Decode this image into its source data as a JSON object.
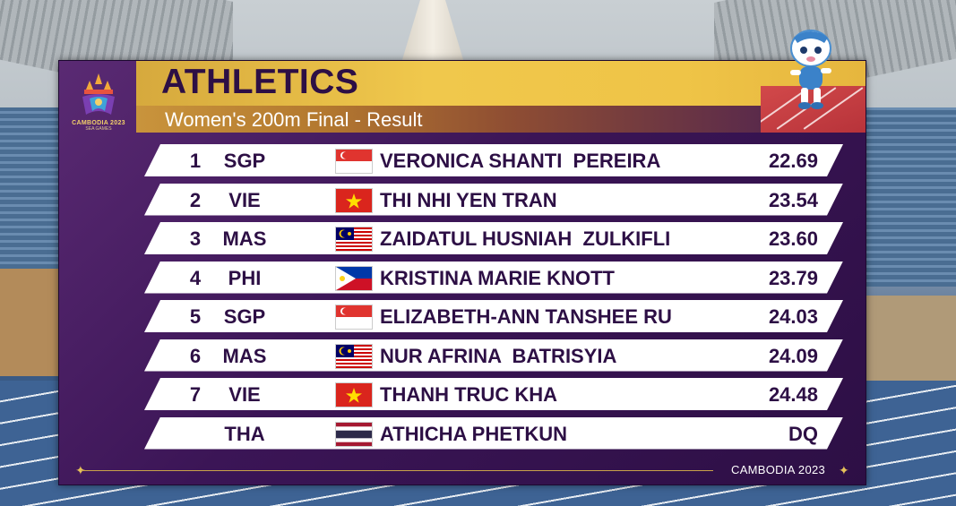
{
  "event": {
    "title": "ATHLETICS",
    "subtitle": "Women's 200m Final - Result",
    "logo_text": "CAMBODIA 2023",
    "logo_sub": "SEA GAMES"
  },
  "results": [
    {
      "rank": "1",
      "code": "SGP",
      "flag": "singapore-flag",
      "name": "VERONICA SHANTI  PEREIRA",
      "time": "22.69"
    },
    {
      "rank": "2",
      "code": "VIE",
      "flag": "vietnam-flag",
      "name": "THI NHI YEN TRAN",
      "time": "23.54"
    },
    {
      "rank": "3",
      "code": "MAS",
      "flag": "malaysia-flag",
      "name": "ZAIDATUL HUSNIAH  ZULKIFLI",
      "time": "23.60"
    },
    {
      "rank": "4",
      "code": "PHI",
      "flag": "philippines-flag",
      "name": "KRISTINA MARIE KNOTT",
      "time": "23.79"
    },
    {
      "rank": "5",
      "code": "SGP",
      "flag": "singapore-flag",
      "name": "ELIZABETH-ANN TANSHEE RU",
      "time": "24.03"
    },
    {
      "rank": "6",
      "code": "MAS",
      "flag": "malaysia-flag",
      "name": "NUR AFRINA  BATRISYIA",
      "time": "24.09"
    },
    {
      "rank": "7",
      "code": "VIE",
      "flag": "vietnam-flag",
      "name": "THANH TRUC KHA",
      "time": "24.48"
    },
    {
      "rank": "",
      "code": "THA",
      "flag": "thailand-flag",
      "name": "ATHICHA PHETKUN",
      "time": "DQ"
    }
  ],
  "footer": {
    "text": "CAMBODIA 2023"
  },
  "colors": {
    "panel": "#3b1556",
    "title_bar": "#f0c84c",
    "text": "#2d0f45",
    "accent_gold": "#e5c15a"
  }
}
